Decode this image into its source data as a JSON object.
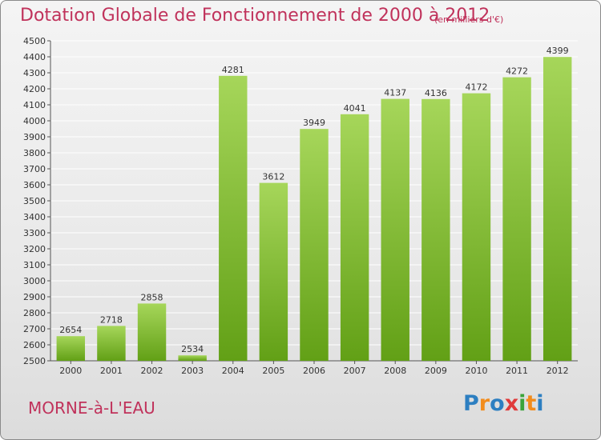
{
  "header": {
    "title": "Dotation Globale de Fonctionnement de 2000 à 2012",
    "unit": "(en milliers d'€)"
  },
  "footer": {
    "commune": "MORNE-à-L'EAU",
    "logo": "Proxiti"
  },
  "colors": {
    "title": "#c0325b",
    "bar_light": "#a6d65a",
    "bar_dark": "#62a016",
    "logo_letters": [
      "#2d7fc1",
      "#f28c1c",
      "#2d7fc1",
      "#e03a3a",
      "#3aa43a",
      "#f28c1c",
      "#2d7fc1"
    ]
  },
  "chart_data": {
    "type": "bar",
    "title": "Dotation Globale de Fonctionnement de 2000 à 2012",
    "xlabel": "",
    "ylabel": "",
    "categories": [
      "2000",
      "2001",
      "2002",
      "2003",
      "2004",
      "2005",
      "2006",
      "2007",
      "2008",
      "2009",
      "2010",
      "2011",
      "2012"
    ],
    "values": [
      2654,
      2718,
      2858,
      2534,
      4281,
      3612,
      3949,
      4041,
      4137,
      4136,
      4172,
      4272,
      4399
    ],
    "ylim": [
      2500,
      4500
    ],
    "ytick_step": 100,
    "grid": true,
    "legend": "none"
  }
}
